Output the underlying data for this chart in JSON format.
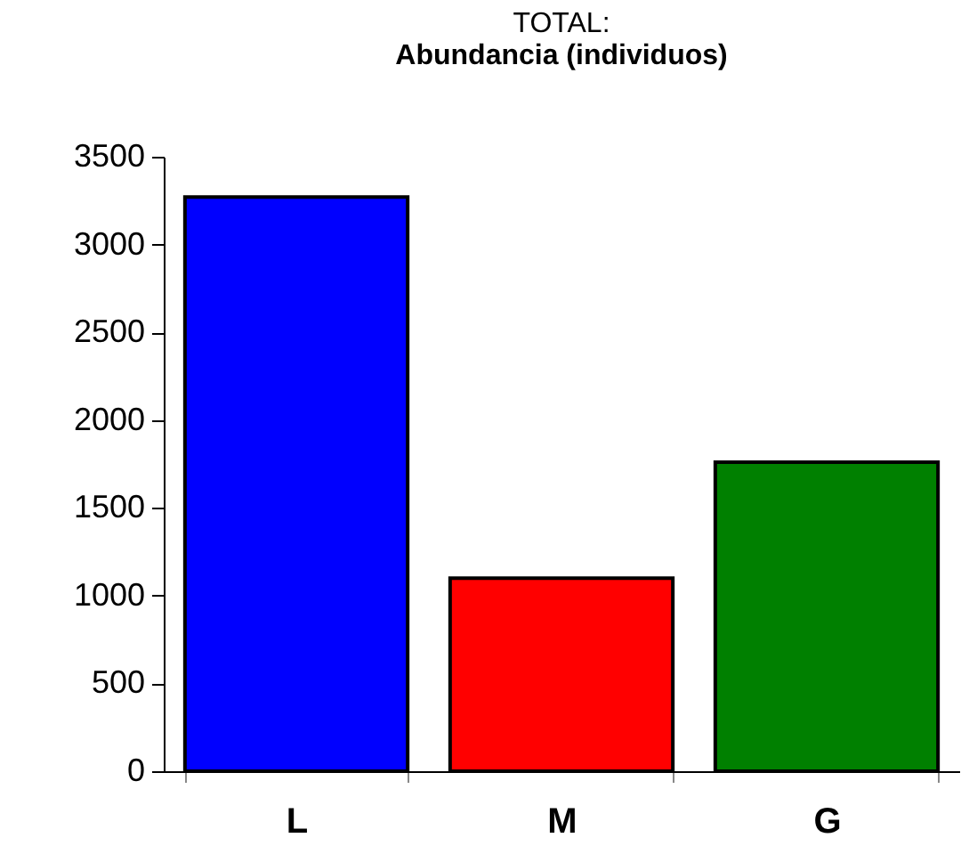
{
  "chart_data": {
    "type": "bar",
    "title": "TOTAL:",
    "subtitle": "Abundancia (individuos)",
    "categories": [
      "L",
      "M",
      "G"
    ],
    "values": [
      3270,
      1100,
      1760
    ],
    "colors": [
      "#0000ff",
      "#ff0000",
      "#008000"
    ],
    "ylim": [
      0,
      3500
    ],
    "yticks": [
      0,
      500,
      1000,
      1500,
      2000,
      2500,
      3000,
      3500
    ],
    "grid": false,
    "legend": false
  }
}
